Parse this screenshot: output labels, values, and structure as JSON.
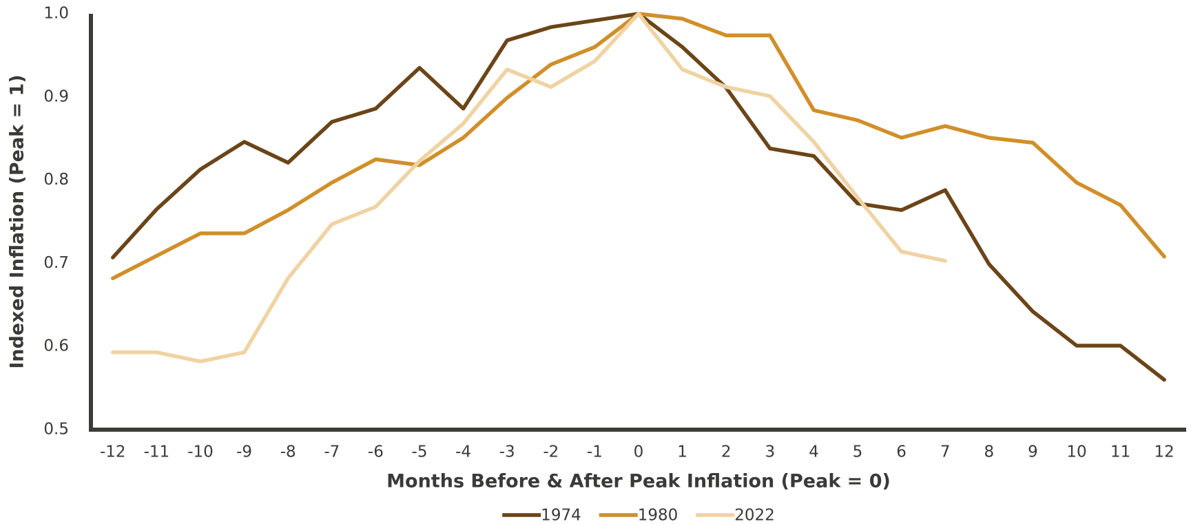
{
  "chart_data": {
    "type": "line",
    "x_label": "Months Before & After Peak Inflation (Peak = 0)",
    "y_label": "Indexed Inflation (Peak = 1)",
    "x": [
      -12,
      -11,
      -10,
      -9,
      -8,
      -7,
      -6,
      -5,
      -4,
      -3,
      -2,
      -1,
      0,
      1,
      2,
      3,
      4,
      5,
      6,
      7,
      8,
      9,
      10,
      11,
      12
    ],
    "series": [
      {
        "name": "1974",
        "color": "#6b4518",
        "values": [
          0.707,
          0.765,
          0.813,
          0.846,
          0.821,
          0.87,
          0.886,
          0.935,
          0.886,
          0.968,
          0.984,
          0.992,
          1.0,
          0.96,
          0.911,
          0.838,
          0.829,
          0.772,
          0.764,
          0.788,
          0.699,
          0.642,
          0.601,
          0.601,
          0.56
        ]
      },
      {
        "name": "1980",
        "color": "#d18f2a",
        "values": [
          0.682,
          0.709,
          0.736,
          0.736,
          0.764,
          0.797,
          0.825,
          0.818,
          0.851,
          0.899,
          0.939,
          0.96,
          1.0,
          0.994,
          0.974,
          0.974,
          0.884,
          0.872,
          0.851,
          0.865,
          0.851,
          0.845,
          0.797,
          0.77,
          0.708
        ]
      },
      {
        "name": "2022",
        "color": "#f0d3a3",
        "values": [
          0.593,
          0.593,
          0.582,
          0.593,
          0.682,
          0.747,
          0.768,
          0.823,
          0.868,
          0.933,
          0.912,
          0.943,
          1.0,
          0.933,
          0.912,
          0.901,
          0.846,
          0.779,
          0.714,
          0.703,
          null,
          null,
          null,
          null,
          null
        ]
      }
    ],
    "xlim": [
      -12.5,
      12.5
    ],
    "xticks": [
      -12,
      -11,
      -10,
      -9,
      -8,
      -7,
      -6,
      -5,
      -4,
      -3,
      -2,
      -1,
      0,
      1,
      2,
      3,
      4,
      5,
      6,
      7,
      8,
      9,
      10,
      11,
      12
    ],
    "ylim": [
      0.5,
      1.0
    ],
    "yticks": [
      0.5,
      0.6,
      0.7,
      0.8,
      0.9,
      {
        "value": 1.0,
        "label": "1.0"
      }
    ],
    "grid": false,
    "legend": "bottom"
  }
}
